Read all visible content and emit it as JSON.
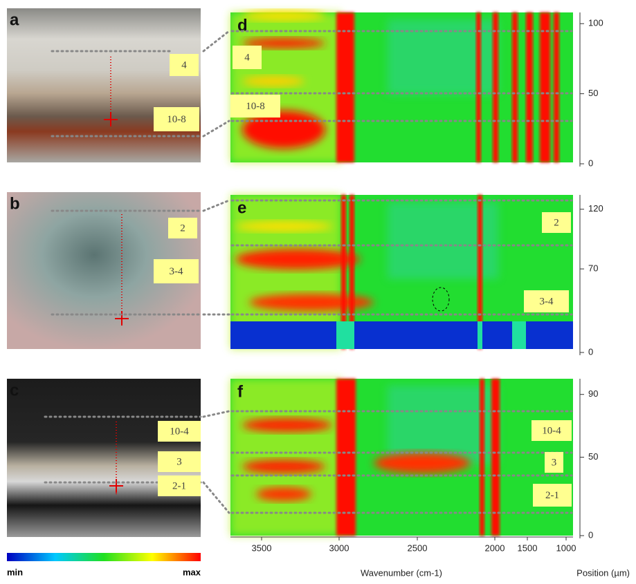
{
  "micrographs": [
    {
      "label": "a",
      "boxes": [
        "4",
        "10-8"
      ]
    },
    {
      "label": "b",
      "boxes": [
        "2",
        "3-4"
      ]
    },
    {
      "label": "c",
      "boxes": [
        "10-4",
        "3",
        "2-1"
      ]
    }
  ],
  "spectra": [
    {
      "label": "d",
      "boxes": [
        "4",
        "10-8"
      ],
      "ylim": [
        0,
        108
      ],
      "yticks": [
        0,
        50,
        100
      ]
    },
    {
      "label": "e",
      "boxes": [
        "2",
        "3-4"
      ],
      "ylim": [
        0,
        132
      ],
      "yticks": [
        0,
        70,
        120
      ]
    },
    {
      "label": "f",
      "boxes": [
        "10-4",
        "3",
        "2-1"
      ],
      "ylim": [
        0,
        100
      ],
      "yticks": [
        0,
        50,
        90
      ]
    }
  ],
  "x_axis": {
    "label": "Wavenumber (cm-1)",
    "ticks": [
      3500,
      3000,
      2500,
      2000,
      1500,
      1000
    ]
  },
  "y_axis_label": "Position (µm)",
  "colorbar": {
    "min": "min",
    "max": "max"
  }
}
